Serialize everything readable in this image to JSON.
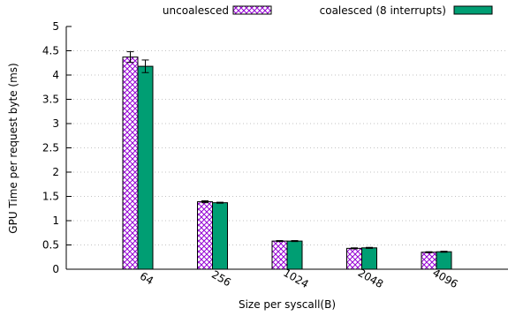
{
  "chart_data": {
    "type": "bar",
    "title": "",
    "xlabel": "Size per syscall(B)",
    "ylabel": "GPU Time per request byte (ms)",
    "categories": [
      "64",
      "256",
      "1024",
      "2048",
      "4096"
    ],
    "ylim": [
      0,
      5
    ],
    "yticks": [
      "0",
      "0.5",
      "1",
      "1.5",
      "2",
      "2.5",
      "3",
      "3.5",
      "4",
      "4.5",
      "5"
    ],
    "grid": true,
    "legend_position": "top",
    "series": [
      {
        "name": "uncoalesced",
        "values": [
          4.37,
          1.39,
          0.58,
          0.43,
          0.35
        ],
        "error": [
          0.11,
          0.02,
          0.01,
          0.01,
          0.01
        ],
        "fill": "crosshatch",
        "color": "#9400d3"
      },
      {
        "name": "coalesced (8 interrupts)",
        "values": [
          4.18,
          1.37,
          0.58,
          0.44,
          0.36
        ],
        "error": [
          0.13,
          0.01,
          0.01,
          0.01,
          0.01
        ],
        "fill": "solid",
        "color": "#009e73"
      }
    ]
  }
}
